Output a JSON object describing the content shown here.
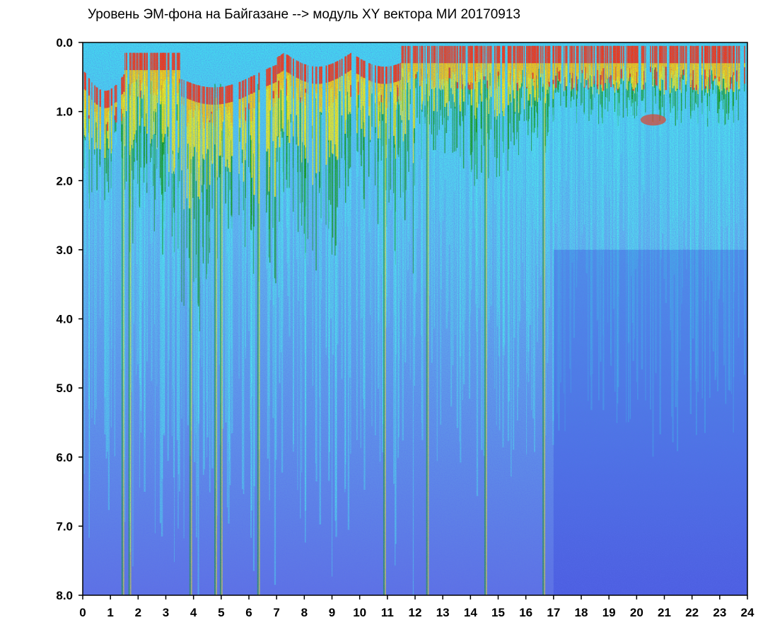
{
  "chart_data": {
    "type": "heatmap",
    "title": "Уровень ЭМ-фона на Байгазане  --> модуль XY вектора МИ  20170913",
    "xlabel": "",
    "ylabel": "",
    "xlim": [
      0,
      24
    ],
    "ylim": [
      0,
      8
    ],
    "y_inverted": true,
    "x_ticks": [
      "0",
      "1",
      "2",
      "3",
      "4",
      "5",
      "6",
      "7",
      "8",
      "9",
      "10",
      "11",
      "12",
      "13",
      "14",
      "15",
      "16",
      "17",
      "18",
      "19",
      "20",
      "21",
      "22",
      "23",
      "24"
    ],
    "y_ticks": [
      "0.0",
      "1.0",
      "2.0",
      "3.0",
      "4.0",
      "5.0",
      "6.0",
      "7.0",
      "8.0"
    ],
    "grid": false,
    "legend": "none",
    "colorscale": [
      "#1a22d8",
      "#7a8cf2",
      "#4de8ee",
      "#10a010",
      "#f2ee10",
      "#f23a10"
    ],
    "background_color": "#ffffff"
  }
}
